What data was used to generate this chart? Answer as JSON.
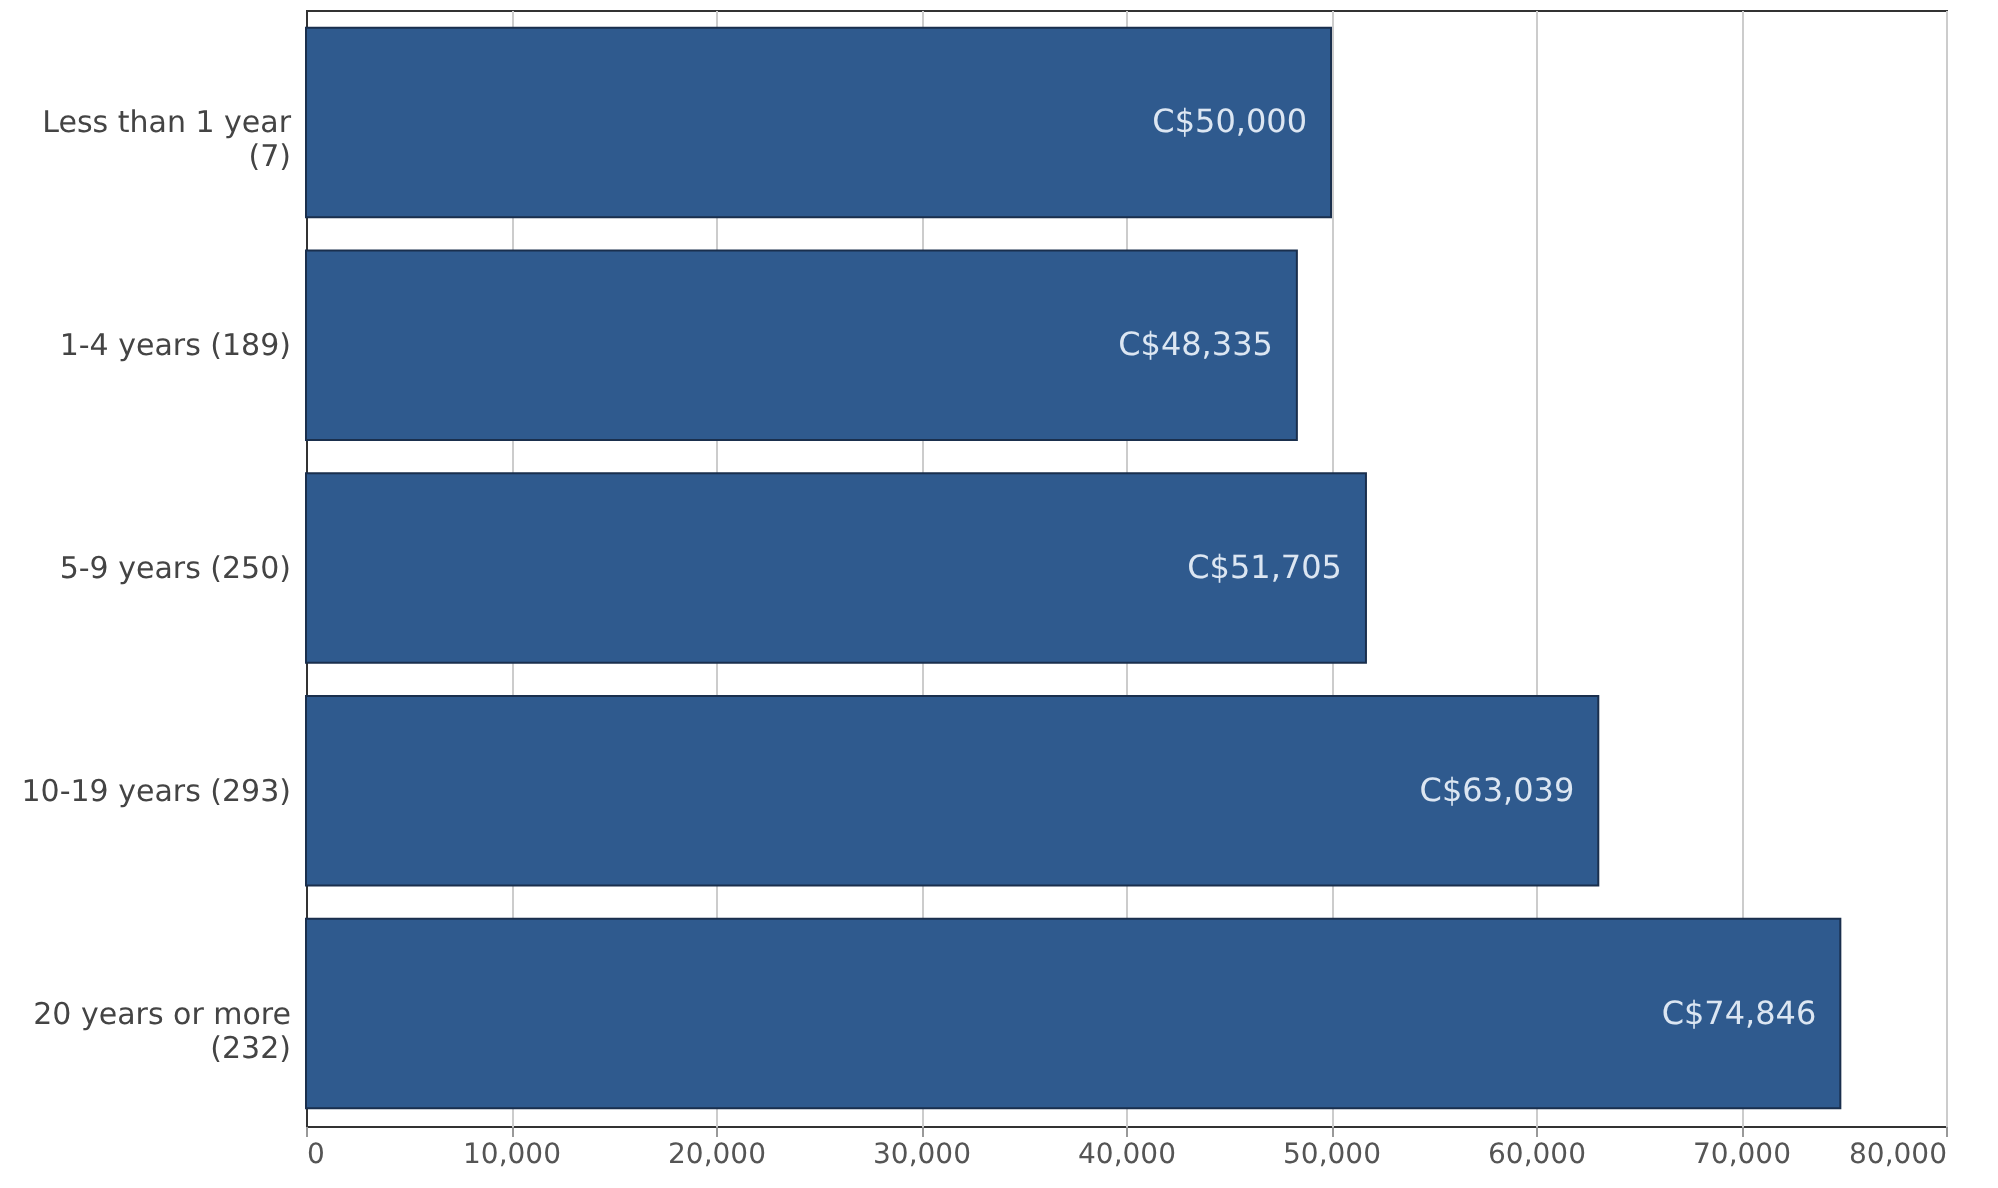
{
  "chart_data": {
    "type": "bar",
    "orientation": "horizontal",
    "categories": [
      "Less than 1 year\n(7)",
      "1-4 years (189)",
      "5-9 years (250)",
      "10-19 years (293)",
      "20 years or more\n(232)"
    ],
    "values": [
      50000,
      48335,
      51705,
      63039,
      74846
    ],
    "value_labels": [
      "C$50,000",
      "C$48,335",
      "C$51,705",
      "C$63,039",
      "C$74,846"
    ],
    "color": "#2f5a8e",
    "xlim": [
      0,
      80000
    ],
    "xticks": [
      0,
      {
        "value": 10000,
        "label": "10,000"
      },
      {
        "value": 20000,
        "label": "20,000"
      },
      {
        "value": 30000,
        "label": "30,000"
      },
      {
        "value": 40000,
        "label": "40,000"
      },
      {
        "value": 50000,
        "label": "50,000"
      },
      {
        "value": 60000,
        "label": "60,000"
      },
      {
        "value": 70000,
        "label": "70,000"
      },
      {
        "value": 80000,
        "label": "80,000"
      }
    ],
    "grid": "x"
  }
}
